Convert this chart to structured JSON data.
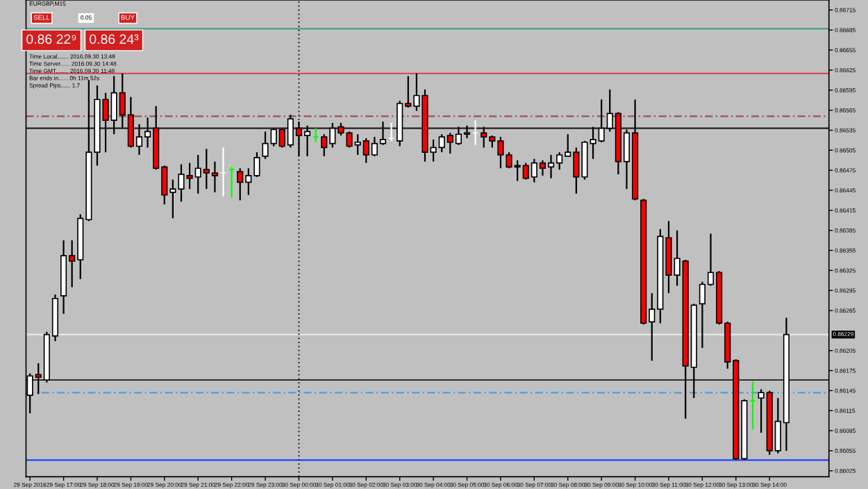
{
  "chart_data": {
    "type": "candlestick",
    "title": "EURGBP,M15",
    "annotations": [
      "SELL",
      "0.05",
      "BUY",
      "0.86 22⁹",
      "0.86 24³",
      "Time Local....... 2016.09.30 13:48",
      "Time Server...... 2016.09.30 14:48",
      "Time GMT........ 2016.09.30 11:48",
      "Bar ends in...... 0h 11m 52s",
      "Spread Pips...... 1.7"
    ],
    "x": [
      "2016-09-29T16:00",
      "2016-09-29T16:15",
      "2016-09-29T16:30",
      "2016-09-29T16:45",
      "2016-09-29T17:00",
      "2016-09-29T17:15",
      "2016-09-29T17:30",
      "2016-09-29T17:45",
      "2016-09-29T18:00",
      "2016-09-29T18:15",
      "2016-09-29T18:30",
      "2016-09-29T18:45",
      "2016-09-29T19:00",
      "2016-09-29T19:15",
      "2016-09-29T19:30",
      "2016-09-29T19:45",
      "2016-09-29T20:00",
      "2016-09-29T20:15",
      "2016-09-29T20:30",
      "2016-09-29T20:45",
      "2016-09-29T21:00",
      "2016-09-29T21:15",
      "2016-09-29T21:30",
      "2016-09-29T21:45",
      "2016-09-29T22:00",
      "2016-09-29T22:15",
      "2016-09-29T22:30",
      "2016-09-29T22:45",
      "2016-09-29T23:00",
      "2016-09-29T23:15",
      "2016-09-29T23:30",
      "2016-09-29T23:45",
      "2016-09-30T00:00",
      "2016-09-30T00:15",
      "2016-09-30T00:30",
      "2016-09-30T00:45",
      "2016-09-30T01:00",
      "2016-09-30T01:15",
      "2016-09-30T01:30",
      "2016-09-30T01:45",
      "2016-09-30T02:00",
      "2016-09-30T02:15",
      "2016-09-30T02:30",
      "2016-09-30T02:45",
      "2016-09-30T03:00",
      "2016-09-30T03:15",
      "2016-09-30T03:30",
      "2016-09-30T03:45",
      "2016-09-30T04:00",
      "2016-09-30T04:15",
      "2016-09-30T04:30",
      "2016-09-30T04:45",
      "2016-09-30T05:00",
      "2016-09-30T05:15",
      "2016-09-30T05:30",
      "2016-09-30T05:45",
      "2016-09-30T06:00",
      "2016-09-30T06:15",
      "2016-09-30T06:30",
      "2016-09-30T06:45",
      "2016-09-30T07:00",
      "2016-09-30T07:15",
      "2016-09-30T07:30",
      "2016-09-30T07:45",
      "2016-09-30T08:00",
      "2016-09-30T08:15",
      "2016-09-30T08:30",
      "2016-09-30T08:45",
      "2016-09-30T09:00",
      "2016-09-30T09:15",
      "2016-09-30T09:30",
      "2016-09-30T09:45",
      "2016-09-30T10:00",
      "2016-09-30T10:15",
      "2016-09-30T10:30",
      "2016-09-30T10:45",
      "2016-09-30T11:00",
      "2016-09-30T11:15",
      "2016-09-30T11:30",
      "2016-09-30T11:45",
      "2016-09-30T12:00",
      "2016-09-30T12:15",
      "2016-09-30T12:30",
      "2016-09-30T12:45",
      "2016-09-30T13:00",
      "2016-09-30T13:15",
      "2016-09-30T13:30",
      "2016-09-30T13:45",
      "2016-09-30T14:00",
      "2016-09-30T14:15",
      "2016-09-30T14:30"
    ],
    "ohlc": [
      [
        0.86138,
        0.86171,
        0.86111,
        0.86167
      ],
      [
        0.86169,
        0.86186,
        0.8614,
        0.86165
      ],
      [
        0.86161,
        0.86233,
        0.86157,
        0.86229
      ],
      [
        0.86227,
        0.86289,
        0.86219,
        0.86283
      ],
      [
        0.86287,
        0.8637,
        0.8626,
        0.86347
      ],
      [
        0.86347,
        0.8637,
        0.863,
        0.86339
      ],
      [
        0.86341,
        0.86409,
        0.86312,
        0.86403
      ],
      [
        0.86401,
        0.8661,
        0.86399,
        0.86502
      ],
      [
        0.86502,
        0.86602,
        0.86482,
        0.86581
      ],
      [
        0.86581,
        0.86591,
        0.86502,
        0.8655
      ],
      [
        0.8655,
        0.86616,
        0.86529,
        0.86591
      ],
      [
        0.86591,
        0.8662,
        0.86538,
        0.86558
      ],
      [
        0.86558,
        0.86585,
        0.86509,
        0.86511
      ],
      [
        0.86511,
        0.86544,
        0.86498,
        0.86525
      ],
      [
        0.86525,
        0.86554,
        0.86509,
        0.86533
      ],
      [
        0.86538,
        0.86571,
        0.86476,
        0.86478
      ],
      [
        0.8648,
        0.86482,
        0.86424,
        0.86438
      ],
      [
        0.86442,
        0.86461,
        0.86403,
        0.86447
      ],
      [
        0.86447,
        0.86484,
        0.86428,
        0.86469
      ],
      [
        0.86467,
        0.86486,
        0.86447,
        0.86463
      ],
      [
        0.86465,
        0.86498,
        0.8644,
        0.86478
      ],
      [
        0.86476,
        0.86507,
        0.86447,
        0.86471
      ],
      [
        0.86471,
        0.86488,
        0.86442,
        0.86467
      ],
      [
        0.86471,
        0.86509,
        0.86436,
        0.86471
      ],
      [
        0.86476,
        0.8648,
        0.86434,
        0.86476
      ],
      [
        0.86473,
        0.86478,
        0.8643,
        0.86457
      ],
      [
        0.86457,
        0.86478,
        0.86438,
        0.86467
      ],
      [
        0.86467,
        0.86502,
        0.86465,
        0.86494
      ],
      [
        0.86496,
        0.86533,
        0.86492,
        0.86515
      ],
      [
        0.86515,
        0.86538,
        0.86511,
        0.86536
      ],
      [
        0.86536,
        0.86538,
        0.86509,
        0.86511
      ],
      [
        0.86513,
        0.86558,
        0.86509,
        0.86552
      ],
      [
        0.86538,
        0.86548,
        0.86496,
        0.86527
      ],
      [
        0.86527,
        0.86542,
        0.86496,
        0.86533
      ],
      [
        0.86525,
        0.86538,
        0.86517,
        0.86525
      ],
      [
        0.86525,
        0.86529,
        0.86496,
        0.86509
      ],
      [
        0.86515,
        0.86546,
        0.86509,
        0.86538
      ],
      [
        0.8654,
        0.86546,
        0.86527,
        0.86531
      ],
      [
        0.86531,
        0.86533,
        0.86509,
        0.86511
      ],
      [
        0.86513,
        0.86529,
        0.86498,
        0.86517
      ],
      [
        0.86519,
        0.86523,
        0.86486,
        0.86498
      ],
      [
        0.86498,
        0.86525,
        0.86496,
        0.86515
      ],
      [
        0.86515,
        0.86548,
        0.86513,
        0.86521
      ],
      [
        0.86523,
        0.86546,
        0.86519,
        0.86523
      ],
      [
        0.86519,
        0.86579,
        0.86511,
        0.86575
      ],
      [
        0.86575,
        0.86616,
        0.86569,
        0.86571
      ],
      [
        0.86571,
        0.8662,
        0.86564,
        0.86587
      ],
      [
        0.86587,
        0.86596,
        0.86488,
        0.86502
      ],
      [
        0.86502,
        0.86521,
        0.86488,
        0.86509
      ],
      [
        0.86509,
        0.86529,
        0.86502,
        0.86525
      ],
      [
        0.86527,
        0.86531,
        0.865,
        0.86517
      ],
      [
        0.86515,
        0.8654,
        0.86513,
        0.86529
      ],
      [
        0.86529,
        0.86542,
        0.86523,
        0.86531
      ],
      [
        0.86531,
        0.8655,
        0.86513,
        0.86531
      ],
      [
        0.86531,
        0.8654,
        0.86509,
        0.86525
      ],
      [
        0.86525,
        0.86527,
        0.86509,
        0.86519
      ],
      [
        0.86519,
        0.86525,
        0.86478,
        0.86498
      ],
      [
        0.86498,
        0.86502,
        0.86478,
        0.8648
      ],
      [
        0.86482,
        0.8649,
        0.86459,
        0.8648
      ],
      [
        0.86482,
        0.86486,
        0.86461,
        0.86463
      ],
      [
        0.86465,
        0.86492,
        0.86457,
        0.86486
      ],
      [
        0.86486,
        0.8649,
        0.86467,
        0.86478
      ],
      [
        0.8648,
        0.86498,
        0.86463,
        0.86486
      ],
      [
        0.86486,
        0.86502,
        0.86476,
        0.86498
      ],
      [
        0.86496,
        0.86529,
        0.86496,
        0.86502
      ],
      [
        0.86502,
        0.86509,
        0.8644,
        0.86465
      ],
      [
        0.86465,
        0.86519,
        0.86461,
        0.86517
      ],
      [
        0.86515,
        0.8654,
        0.86492,
        0.86521
      ],
      [
        0.86519,
        0.86581,
        0.86517,
        0.86538
      ],
      [
        0.86538,
        0.86596,
        0.86533,
        0.8656
      ],
      [
        0.8656,
        0.86562,
        0.86469,
        0.86488
      ],
      [
        0.86488,
        0.86536,
        0.86447,
        0.86531
      ],
      [
        0.86531,
        0.86581,
        0.8643,
        0.86432
      ],
      [
        0.8643,
        0.86432,
        0.86244,
        0.86246
      ],
      [
        0.86248,
        0.86291,
        0.8619,
        0.86267
      ],
      [
        0.86267,
        0.86387,
        0.86246,
        0.86376
      ],
      [
        0.86374,
        0.86399,
        0.86291,
        0.86318
      ],
      [
        0.86318,
        0.86385,
        0.86302,
        0.86343
      ],
      [
        0.86339,
        0.86341,
        0.86103,
        0.86182
      ],
      [
        0.8618,
        0.86275,
        0.86134,
        0.86273
      ],
      [
        0.86275,
        0.86308,
        0.86209,
        0.86304
      ],
      [
        0.86304,
        0.8638,
        0.86302,
        0.86322
      ],
      [
        0.86322,
        0.86324,
        0.86244,
        0.86246
      ],
      [
        0.86246,
        0.86248,
        0.86178,
        0.86188
      ],
      [
        0.8619,
        0.86192,
        0.86041,
        0.86043
      ],
      [
        0.86043,
        0.86132,
        0.86041,
        0.8613
      ],
      [
        0.8613,
        0.86159,
        0.86087,
        0.8613
      ],
      [
        0.86134,
        0.86147,
        0.86082,
        0.86142
      ],
      [
        0.86142,
        0.86145,
        0.86049,
        0.86055
      ],
      [
        0.86055,
        0.86134,
        0.86051,
        0.86099
      ],
      [
        0.86097,
        0.86254,
        0.86055,
        0.86229
      ]
    ],
    "colors": [
      "#ffffff",
      "#ff0000",
      "#ffffff",
      "#ffffff",
      "#ffffff",
      "#ff0000",
      "#ffffff",
      "#ffffff",
      "#ffffff",
      "#ff0000",
      "#ffffff",
      "#ff0000",
      "#ff0000",
      "#ffffff",
      "#ffffff",
      "#ff0000",
      "#ff0000",
      "#ffffff",
      "#ffffff",
      "#ff0000",
      "#ffffff",
      "#ff0000",
      "#ff0000",
      "#ffffff",
      "#00ff00",
      "#ff0000",
      "#ffffff",
      "#ffffff",
      "#ffffff",
      "#ffffff",
      "#ff0000",
      "#ffffff",
      "#ff0000",
      "#ffffff",
      "#00ff00",
      "#ff0000",
      "#ffffff",
      "#ff0000",
      "#ff0000",
      "#ffffff",
      "#ff0000",
      "#ffffff",
      "#ffffff",
      "#ffffff",
      "#ffffff",
      "#ff0000",
      "#ffffff",
      "#ff0000",
      "#ffffff",
      "#ffffff",
      "#ff0000",
      "#ffffff",
      "#ffffff",
      "#ffffff",
      "#ff0000",
      "#ff0000",
      "#ff0000",
      "#ff0000",
      "#ff0000",
      "#ff0000",
      "#ffffff",
      "#ff0000",
      "#ffffff",
      "#ffffff",
      "#ffffff",
      "#ff0000",
      "#ffffff",
      "#ffffff",
      "#ffffff",
      "#ffffff",
      "#ff0000",
      "#ffffff",
      "#ff0000",
      "#ff0000",
      "#ffffff",
      "#ffffff",
      "#ff0000",
      "#ffffff",
      "#ff0000",
      "#ffffff",
      "#ffffff",
      "#ffffff",
      "#ff0000",
      "#ff0000",
      "#ff0000",
      "#ffffff",
      "#00ff00",
      "#ffffff",
      "#ff0000",
      "#ffffff",
      "#ffffff"
    ],
    "xlim": [
      "2016-09-29T15:53",
      "2016-09-30T15:46"
    ],
    "xticks": [
      {
        "value": "2016-09-29T16:00",
        "label": "29 Sep 2016"
      },
      {
        "value": "2016-09-29T17:00",
        "label": "29 Sep 17:00"
      },
      {
        "value": "2016-09-29T18:00",
        "label": "29 Sep 18:00"
      },
      {
        "value": "2016-09-29T19:00",
        "label": "29 Sep 19:00"
      },
      {
        "value": "2016-09-29T20:00",
        "label": "29 Sep 20:00"
      },
      {
        "value": "2016-09-29T21:00",
        "label": "29 Sep 21:00"
      },
      {
        "value": "2016-09-29T22:00",
        "label": "29 Sep 22:00"
      },
      {
        "value": "2016-09-29T23:00",
        "label": "29 Sep 23:00"
      },
      {
        "value": "2016-09-30T00:00",
        "label": "30 Sep 00:00"
      },
      {
        "value": "2016-09-30T01:00",
        "label": "30 Sep 01:00"
      },
      {
        "value": "2016-09-30T02:00",
        "label": "30 Sep 02:00"
      },
      {
        "value": "2016-09-30T03:00",
        "label": "30 Sep 03:00"
      },
      {
        "value": "2016-09-30T04:00",
        "label": "30 Sep 04:00"
      },
      {
        "value": "2016-09-30T05:00",
        "label": "30 Sep 05:00"
      },
      {
        "value": "2016-09-30T06:00",
        "label": "30 Sep 06:00"
      },
      {
        "value": "2016-09-30T07:00",
        "label": "30 Sep 07:00"
      },
      {
        "value": "2016-09-30T08:00",
        "label": "30 Sep 08:00"
      },
      {
        "value": "2016-09-30T09:00",
        "label": "30 Sep 09:00"
      },
      {
        "value": "2016-09-30T10:00",
        "label": "30 Sep 10:00"
      },
      {
        "value": "2016-09-30T11:00",
        "label": "30 Sep 11:00"
      },
      {
        "value": "2016-09-30T12:00",
        "label": "30 Sep 12:00"
      },
      {
        "value": "2016-09-30T13:00",
        "label": "30 Sep 13:00"
      },
      {
        "value": "2016-09-30T14:00",
        "label": "30 Sep 14:00"
      }
    ],
    "ylim": [
      0.86016,
      0.8673
    ],
    "yticks": [
      0.86025,
      0.86055,
      0.86085,
      0.86115,
      0.86145,
      0.86175,
      0.86205,
      0.86265,
      0.86295,
      0.86325,
      0.86355,
      0.86385,
      0.86415,
      0.86445,
      0.86475,
      0.86505,
      0.86535,
      0.86565,
      0.86595,
      0.86625,
      0.86655,
      0.86685,
      0.86715
    ],
    "ref_lines": [
      {
        "axis": "y",
        "value": 0.86687,
        "color": "#4a9c8c",
        "line_style": "solid"
      },
      {
        "axis": "y",
        "value": 0.8662,
        "color": "#e04040",
        "line_style": "solid"
      },
      {
        "axis": "y",
        "value": 0.86556,
        "color": "#a05050",
        "line_style": "dashed"
      },
      {
        "axis": "y",
        "value": 0.86538,
        "color": "#202020",
        "line_style": "solid"
      },
      {
        "axis": "y",
        "value": 0.86229,
        "color": "#e8e8e8",
        "line_style": "solid",
        "label": "0.86229"
      },
      {
        "axis": "y",
        "value": 0.86161,
        "color": "#303030",
        "line_style": "solid"
      },
      {
        "axis": "y",
        "value": 0.86142,
        "color": "#4aa0e0",
        "line_style": "dashed"
      },
      {
        "axis": "y",
        "value": 0.86041,
        "color": "#2040ff",
        "line_style": "solid"
      },
      {
        "axis": "x",
        "value": "2016-09-30T00:00",
        "color": "#202020",
        "line_style": "dotted"
      }
    ],
    "grid": false
  }
}
